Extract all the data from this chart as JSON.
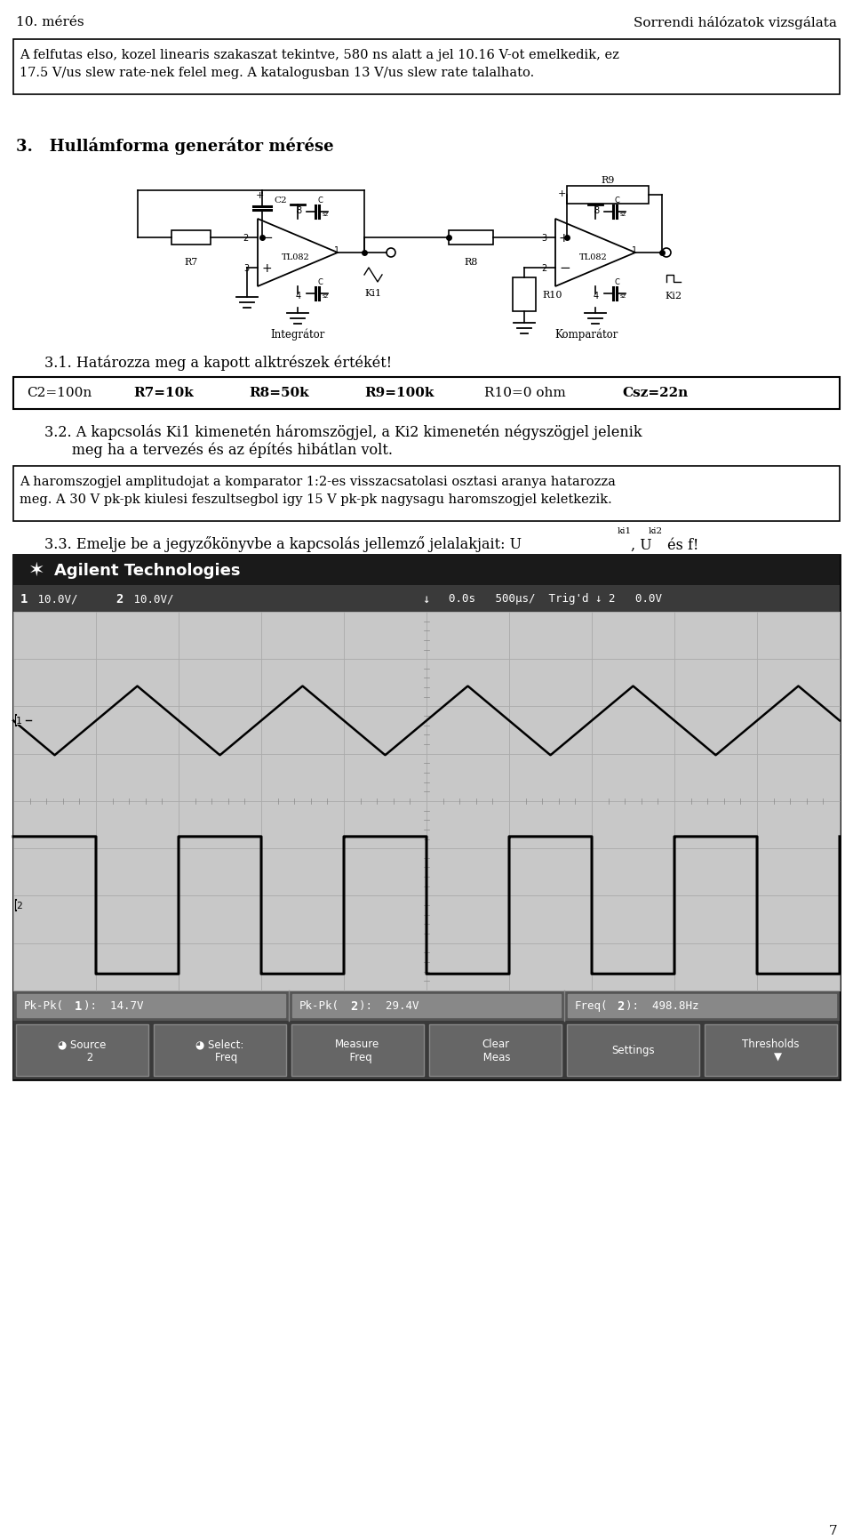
{
  "page_title_left": "10. mérés",
  "page_title_right": "Sorrendi hálózatok vizsgálata",
  "box1_text_line1": "A felfutas elso, kozel linearis szakaszat tekintve, 580 ns alatt a jel 10.16 V-ot emelkedik, ez",
  "box1_text_line2": "17.5 V/us slew rate-nek felel meg. A katalogusban 13 V/us slew rate talalhato.",
  "section3_title": "3.   Hullámforma generátor mérése",
  "section31_title": "3.1. Határozza meg a kapott alktrészek értékét!",
  "comp_values": [
    "C2=100n",
    "R7=10k",
    "R8=50k",
    "R9=100k",
    "R10=0 ohm",
    "Csz=22n"
  ],
  "comp_x": [
    30,
    160,
    280,
    410,
    545,
    705
  ],
  "section32_line1": "3.2. A kapcsolás Ki1 kimenetén háromszögjel, a Ki2 kimenetén négyszögjel jelenik",
  "section32_line2": "      meg ha a tervezés és az építés hibátlan volt.",
  "box2_line1": "A haromszogjel amplitudojat a komparator 1:2-es visszacsatolasi osztasi aranya hatarozza",
  "box2_line2": "meg. A 30 V pk-pk kiulesi feszultsegbol igy 15 V pk-pk nagysagu haromszogjel keletkezik.",
  "section33_pre": "3.3. Emelje be a jegyzőkönyvbe a kapcsolás jellemző jelalakjait: U",
  "section33_sub1": "ki1",
  "section33_mid": ", U",
  "section33_sub2": "ki2",
  "section33_end": " és f!",
  "page_number": "7",
  "osc_header_color": "#1a1a1a",
  "osc_bar_color": "#3a3a3a",
  "osc_screen_color": "#c8c8c8",
  "osc_grid_color": "#aaaaaa",
  "osc_meas_color": "#555555",
  "osc_btn_color": "#666666"
}
